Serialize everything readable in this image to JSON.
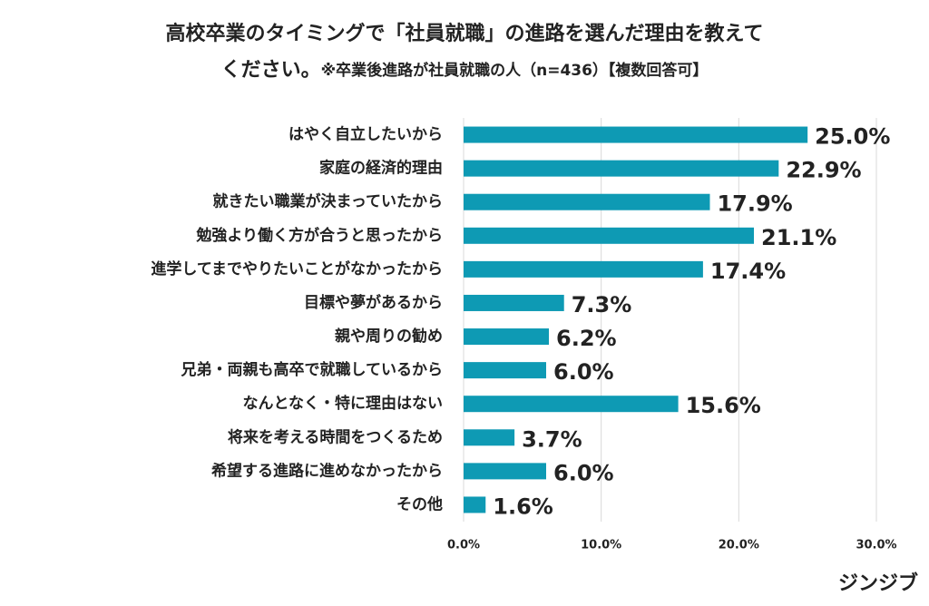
{
  "chart_data": {
    "type": "bar",
    "orientation": "horizontal",
    "title": [
      "高校卒業のタイミングで「社員就職」の進路を選んだ理由を教えて",
      "ください。"
    ],
    "subtitle": "※卒業後進路が社員就職の人（n=436）【複数回答可】",
    "categories": [
      "はやく自立したいから",
      "家庭の経済的理由",
      "就きたい職業が決まっていたから",
      "勉強より働く方が合うと思ったから",
      "進学してまでやりたいことがなかったから",
      "目標や夢があるから",
      "親や周りの勧め",
      "兄弟・両親も高卒で就職しているから",
      "なんとなく・特に理由はない",
      "将来を考える時間をつくるため",
      "希望する進路に進めなかったから",
      "その他"
    ],
    "values": [
      25.0,
      22.9,
      17.9,
      21.1,
      17.4,
      7.3,
      6.2,
      6.0,
      15.6,
      3.7,
      6.0,
      1.6
    ],
    "value_labels": [
      "25.0%",
      "22.9%",
      "17.9%",
      "21.1%",
      "17.4%",
      "7.3%",
      "6.2%",
      "6.0%",
      "15.6%",
      "3.7%",
      "6.0%",
      "1.6%"
    ],
    "color": "#0e9ab4",
    "xlim": [
      0,
      30
    ],
    "xticks": [
      {
        "value": 0,
        "label": "0.0%"
      },
      {
        "value": 10,
        "label": "10.0%"
      },
      {
        "value": 20,
        "label": "20.0%"
      },
      {
        "value": 30,
        "label": "30.0%"
      }
    ],
    "grid": true
  },
  "brand": "ジンジブ"
}
